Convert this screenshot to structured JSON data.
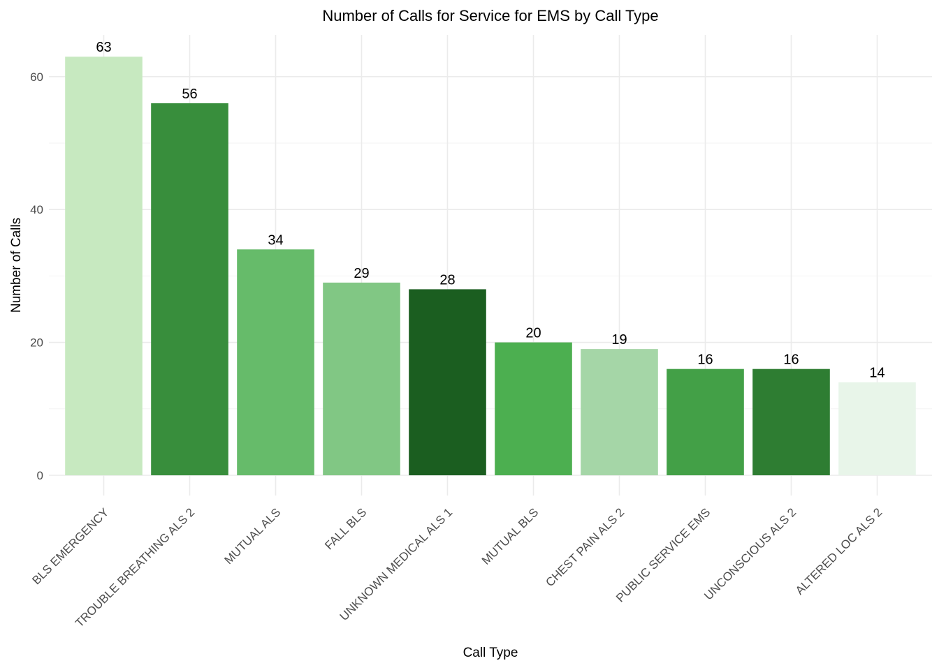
{
  "chart_data": {
    "type": "bar",
    "title": "Number of Calls for Service for EMS by Call Type",
    "xlabel": "Call Type",
    "ylabel": "Number of Calls",
    "categories": [
      "BLS EMERGENCY",
      "TROUBLE BREATHING ALS 2",
      "MUTUAL ALS",
      "FALL BLS",
      "UNKNOWN MEDICAL ALS 1",
      "MUTUAL BLS",
      "CHEST PAIN ALS 2",
      "PUBLIC SERVICE EMS",
      "UNCONSCIOUS ALS 2",
      "ALTERED LOC ALS 2"
    ],
    "values": [
      63,
      56,
      34,
      29,
      28,
      20,
      19,
      16,
      16,
      14
    ],
    "colors": [
      "#c7e9c0",
      "#388e3c",
      "#66bb6a",
      "#81c784",
      "#1b5e20",
      "#4caf50",
      "#a5d6a7",
      "#43a047",
      "#2e7d32",
      "#e8f5e9"
    ],
    "ylim": [
      0,
      66
    ],
    "yticks": [
      0,
      20,
      40,
      60
    ],
    "grid": true,
    "legend": "none"
  }
}
